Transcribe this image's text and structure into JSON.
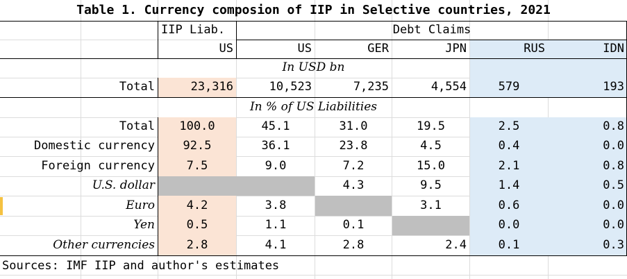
{
  "title": "Table 1. Currency composion of IIP in Selective countries, 2021",
  "header": {
    "group_liab": "IIP Liab.",
    "group_claims": "Debt Claims",
    "columns": [
      "US",
      "US",
      "GER",
      "JPN",
      "RUS",
      "IDN"
    ]
  },
  "section_usd": "In USD bn",
  "row_total_usd": {
    "label": "Total",
    "values": [
      "23,316",
      "10,523",
      "7,235",
      "4,554",
      "579",
      "193"
    ]
  },
  "section_pct": "In % of US Liabilities",
  "rows_pct": [
    {
      "label": "Total",
      "values": [
        "100.0",
        "45.1",
        "31.0",
        "19.5",
        "2.5",
        "0.8"
      ]
    },
    {
      "label": "Domestic currency",
      "values": [
        "92.5",
        "36.1",
        "23.8",
        "4.5",
        "0.4",
        "0.0"
      ]
    },
    {
      "label": "Foreign currency",
      "values": [
        "7.5",
        "9.0",
        "7.2",
        "15.0",
        "2.1",
        "0.8"
      ]
    },
    {
      "label": "U.S. dollar",
      "values": [
        "",
        "",
        "4.3",
        "9.5",
        "1.4",
        "0.5"
      ]
    },
    {
      "label": "Euro",
      "values": [
        "4.2",
        "3.8",
        "",
        "3.1",
        "0.6",
        "0.0"
      ]
    },
    {
      "label": "Yen",
      "values": [
        "0.5",
        "1.1",
        "0.1",
        "",
        "0.0",
        "0.0"
      ]
    },
    {
      "label": "Other currencies",
      "values": [
        "2.8",
        "4.1",
        "2.8",
        "2.4",
        "0.1",
        "0.3"
      ]
    }
  ],
  "source_note": "Sources: IMF IIP and author's estimates",
  "colors": {
    "liab_fill": "#fbe4d5",
    "claims_em_fill": "#ddebf7",
    "blank_fill": "#bfbfbf"
  }
}
